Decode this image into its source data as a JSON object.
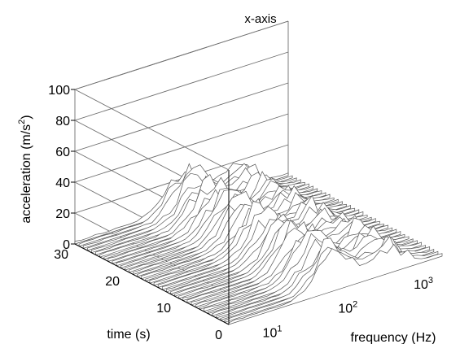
{
  "chart_data": {
    "type": "waterfall",
    "title": "x-axis",
    "xlabel": "frequency (Hz)",
    "ylabel": "time (s)",
    "zlabel": "acceleration (m/s",
    "zlabel_sup": "2",
    "zlabel_end": ")",
    "xscale": "log",
    "xlim": [
      3,
      2000
    ],
    "ylim": [
      0,
      30
    ],
    "zlim": [
      0,
      100
    ],
    "x_ticks": [
      {
        "value": 10,
        "base": "10",
        "exp": "1"
      },
      {
        "value": 100,
        "base": "10",
        "exp": "2"
      },
      {
        "value": 1000,
        "base": "10",
        "exp": "3"
      }
    ],
    "y_ticks": [
      {
        "value": 0,
        "label": "0"
      },
      {
        "value": 10,
        "label": "10"
      },
      {
        "value": 20,
        "label": "20"
      },
      {
        "value": 30,
        "label": "30"
      }
    ],
    "z_ticks": [
      {
        "value": 0,
        "label": "0"
      },
      {
        "value": 20,
        "label": "20"
      },
      {
        "value": 40,
        "label": "40"
      },
      {
        "value": 60,
        "label": "60"
      },
      {
        "value": 80,
        "label": "80"
      },
      {
        "value": 100,
        "label": "100"
      }
    ],
    "grid": true,
    "slices": {
      "time_start": 0,
      "time_end": 30,
      "count": 38,
      "freq_start": 3,
      "freq_end": 2000,
      "points_per_slice": 32
    },
    "spectrum_features": {
      "baseline": 1.5,
      "peak_frequency_hz": 80,
      "peak_acceleration": 24,
      "secondary_peak_frequency_hz": 400,
      "secondary_peak_acceleration": 16
    }
  }
}
